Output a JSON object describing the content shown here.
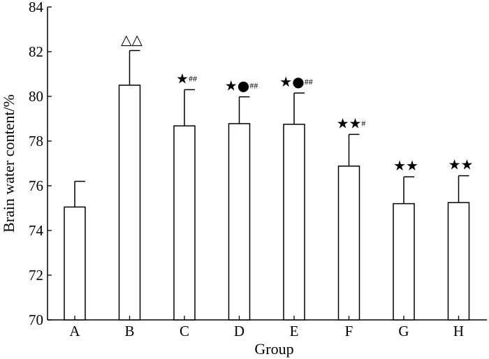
{
  "chart_data": {
    "type": "bar",
    "categories": [
      "A",
      "B",
      "C",
      "D",
      "E",
      "F",
      "G",
      "H"
    ],
    "values": [
      75.05,
      80.5,
      78.68,
      78.78,
      78.75,
      76.88,
      75.2,
      75.25
    ],
    "error": [
      1.15,
      1.55,
      1.62,
      1.2,
      1.4,
      1.42,
      1.2,
      1.2
    ],
    "annotations": [
      {
        "main": "",
        "hash": ""
      },
      {
        "main": "△△",
        "hash": ""
      },
      {
        "main": "★",
        "hash": "##"
      },
      {
        "main": "★●",
        "hash": "##"
      },
      {
        "main": "★●",
        "hash": "##"
      },
      {
        "main": "★★",
        "hash": "#"
      },
      {
        "main": "★★",
        "hash": ""
      },
      {
        "main": "★★",
        "hash": ""
      }
    ],
    "title": "",
    "xlabel": "Group",
    "ylabel": "Brain water content/%",
    "ylim": [
      70,
      84
    ],
    "yticks": [
      70,
      72,
      74,
      76,
      78,
      80,
      82,
      84
    ],
    "grid": false,
    "legend": "none"
  }
}
